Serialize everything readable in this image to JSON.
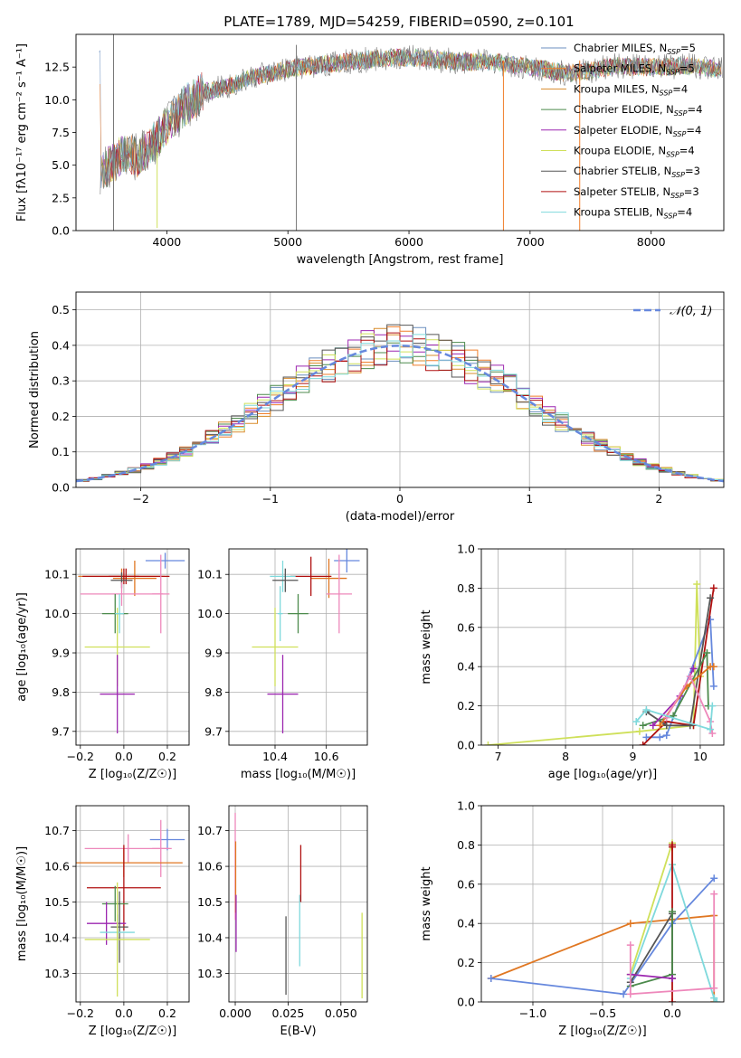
{
  "figure": {
    "title": "PLATE=1789, MJD=54259, FIBERID=0590, z=0.101",
    "colors": {
      "chabrier_miles": "#6b8fbf",
      "salpeter_miles": "#f07e2a",
      "kroupa_miles": "#d98c2b",
      "chabrier_elodie": "#4c8a4c",
      "salpeter_elodie": "#9c27b0",
      "kroupa_elodie": "#cfe05a",
      "chabrier_stelib": "#555555",
      "salpeter_stelib": "#b01010",
      "kroupa_stelib": "#7fd9dc",
      "blue": "#6688dd",
      "pink": "#ee88bb",
      "orange": "#e07722",
      "gray": "#777777"
    }
  },
  "chart_data": [
    {
      "id": "spectrum",
      "type": "line",
      "xlabel": "wavelength [Angstrom, rest frame]",
      "ylabel": "Flux [fλ10⁻¹⁷ erg cm⁻² s⁻¹ A⁻¹]",
      "xlim": [
        3250,
        8600
      ],
      "ylim": [
        0,
        15.0
      ],
      "xticks": [
        "4000",
        "5000",
        "6000",
        "7000",
        "8000"
      ],
      "yticks": [
        "0.0",
        "2.5",
        "5.0",
        "7.5",
        "10.0",
        "12.5"
      ],
      "xtick_values": [
        4000,
        5000,
        6000,
        7000,
        8000
      ],
      "ytick_values": [
        0,
        2.5,
        5.0,
        7.5,
        10.0,
        12.5
      ],
      "legend": [
        {
          "label": "Chabrier MILES, N",
          "n": "5",
          "color": "#6b8fbf"
        },
        {
          "label": "Salpeter MILES, N",
          "n": "5",
          "color": "#f07e2a"
        },
        {
          "label": "Kroupa MILES, N",
          "n": "4",
          "color": "#d98c2b"
        },
        {
          "label": "Chabrier ELODIE, N",
          "n": "4",
          "color": "#4c8a4c"
        },
        {
          "label": "Salpeter ELODIE, N",
          "n": "4",
          "color": "#9c27b0"
        },
        {
          "label": "Kroupa ELODIE, N",
          "n": "4",
          "color": "#cfe05a"
        },
        {
          "label": "Chabrier STELIB, N",
          "n": "3",
          "color": "#555555"
        },
        {
          "label": "Salpeter STELIB, N",
          "n": "3",
          "color": "#b01010"
        },
        {
          "label": "Kroupa STELIB, N",
          "n": "4",
          "color": "#7fd9dc"
        }
      ],
      "legend_sub": "SSP",
      "legend_suffix": "=",
      "continuum": {
        "x": [
          3450,
          3550,
          3650,
          3750,
          3850,
          3950,
          4050,
          4150,
          4300,
          4500,
          4700,
          4900,
          5100,
          5300,
          5500,
          5700,
          5900,
          6100,
          6300,
          6500,
          6700,
          6900,
          7100,
          7300,
          7500,
          7700,
          7900,
          8100,
          8300,
          8500
        ],
        "y": [
          4.6,
          5.0,
          6.1,
          5.6,
          6.3,
          7.4,
          8.6,
          9.6,
          10.6,
          11.0,
          11.7,
          12.1,
          12.5,
          12.7,
          12.9,
          13.1,
          13.2,
          13.2,
          13.0,
          12.9,
          12.9,
          12.6,
          12.4,
          12.0,
          12.2,
          12.6,
          12.5,
          12.5,
          12.6,
          12.4
        ]
      },
      "spikes": [
        {
          "x": 3560,
          "y0": 0,
          "y1": 15.0,
          "color": "#777777"
        },
        {
          "x": 5070,
          "y0": 0,
          "y1": 14.2,
          "color": "#777777"
        },
        {
          "x": 6780,
          "y0": 0,
          "y1": 13.0,
          "color": "#f07e2a"
        },
        {
          "x": 7410,
          "y0": 0,
          "y1": 13.0,
          "color": "#f07e2a"
        },
        {
          "x": 3920,
          "y0": 0.2,
          "y1": 6.0,
          "color": "#cfe05a"
        }
      ]
    },
    {
      "id": "residuals",
      "type": "histogram",
      "xlabel": "(data-model)/error",
      "ylabel": "Normed distribution",
      "xlim": [
        -2.5,
        2.5
      ],
      "ylim": [
        0,
        0.55
      ],
      "xticks": [
        "−2",
        "−1",
        "0",
        "1",
        "2"
      ],
      "yticks": [
        "0.0",
        "0.1",
        "0.2",
        "0.3",
        "0.4",
        "0.5"
      ],
      "xtick_values": [
        -2,
        -1,
        0,
        1,
        2
      ],
      "ytick_values": [
        0,
        0.1,
        0.2,
        0.3,
        0.4,
        0.5
      ],
      "legend": "𝒩(0, 1)",
      "bin_width": 0.1
    },
    {
      "id": "age_vs_Z",
      "type": "errorbar",
      "xlabel": "Z [log₁₀(Z/Z☉)]",
      "ylabel": "age  [log₁₀(age/yr)]",
      "xlim": [
        -0.22,
        0.3
      ],
      "ylim": [
        9.665,
        10.165
      ],
      "xticks": [
        "−0.2",
        "0.0",
        "0.2"
      ],
      "xtick_values": [
        -0.2,
        0.0,
        0.2
      ],
      "yticks": [
        "9.7",
        "9.8",
        "9.9",
        "10.0",
        "10.1"
      ],
      "ytick_values": [
        9.7,
        9.8,
        9.9,
        10.0,
        10.1
      ],
      "points": [
        {
          "x": 0.19,
          "y": 10.135,
          "xerr": 0.09,
          "yerr": 0.02,
          "color": "#6688dd"
        },
        {
          "x": 0.05,
          "y": 10.09,
          "xerr": 0.1,
          "yerr": 0.045,
          "color": "#e07722"
        },
        {
          "x": -0.01,
          "y": 10.095,
          "xerr": 0.2,
          "yerr": 0.02,
          "color": "#e07722"
        },
        {
          "x": 0.0,
          "y": 10.095,
          "xerr": 0.07,
          "yerr": 0.02,
          "color": "#b01010"
        },
        {
          "x": 0.01,
          "y": 10.095,
          "xerr": 0.2,
          "yerr": 0.02,
          "color": "#b01010"
        },
        {
          "x": -0.01,
          "y": 10.085,
          "xerr": 0.05,
          "yerr": 0.02,
          "color": "#555555"
        },
        {
          "x": 0.17,
          "y": 10.05,
          "xerr": 0.04,
          "yerr": 0.1,
          "color": "#ee88bb"
        },
        {
          "x": -0.01,
          "y": 10.05,
          "xerr": 0.19,
          "yerr": 0.03,
          "color": "#ee88bb"
        },
        {
          "x": -0.04,
          "y": 10.0,
          "xerr": 0.06,
          "yerr": 0.05,
          "color": "#4c8a4c"
        },
        {
          "x": -0.03,
          "y": 9.915,
          "xerr": 0.15,
          "yerr": 0.1,
          "color": "#cfe05a"
        },
        {
          "x": -0.03,
          "y": 9.795,
          "xerr": 0.08,
          "yerr": 0.1,
          "color": "#9c27b0"
        },
        {
          "x": -0.02,
          "y": 10.0,
          "xerr": 0.02,
          "yerr": 0.05,
          "color": "#7fd9dc"
        }
      ]
    },
    {
      "id": "age_vs_mass",
      "type": "errorbar",
      "xlabel": "mass [log₁₀(M/M☉)]",
      "ylabel": "",
      "xlim": [
        10.22,
        10.76
      ],
      "ylim": [
        9.665,
        10.165
      ],
      "xticks": [
        "10.4",
        "10.6"
      ],
      "xtick_values": [
        10.4,
        10.6
      ],
      "yticks": [
        "9.7",
        "9.8",
        "9.9",
        "10.0",
        "10.1"
      ],
      "ytick_values": [
        9.7,
        9.8,
        9.9,
        10.0,
        10.1
      ],
      "points": [
        {
          "x": 10.68,
          "y": 10.135,
          "xerr": 0.05,
          "yerr": 0.03,
          "color": "#6688dd"
        },
        {
          "x": 10.61,
          "y": 10.09,
          "xerr": 0.07,
          "yerr": 0.05,
          "color": "#e07722"
        },
        {
          "x": 10.54,
          "y": 10.095,
          "xerr": 0.08,
          "yerr": 0.05,
          "color": "#b01010"
        },
        {
          "x": 10.43,
          "y": 10.095,
          "xerr": 0.05,
          "yerr": 0.04,
          "color": "#7fd9dc"
        },
        {
          "x": 10.44,
          "y": 10.085,
          "xerr": 0.05,
          "yerr": 0.03,
          "color": "#555555"
        },
        {
          "x": 10.65,
          "y": 10.05,
          "xerr": 0.05,
          "yerr": 0.1,
          "color": "#ee88bb"
        },
        {
          "x": 10.49,
          "y": 10.0,
          "xerr": 0.04,
          "yerr": 0.05,
          "color": "#4c8a4c"
        },
        {
          "x": 10.4,
          "y": 9.915,
          "xerr": 0.09,
          "yerr": 0.1,
          "color": "#cfe05a"
        },
        {
          "x": 10.43,
          "y": 9.795,
          "xerr": 0.06,
          "yerr": 0.1,
          "color": "#9c27b0"
        },
        {
          "x": 10.42,
          "y": 10.0,
          "xerr": 0.01,
          "yerr": 0.07,
          "color": "#7fd9dc"
        }
      ]
    },
    {
      "id": "weight_vs_age",
      "type": "line",
      "xlabel": "age  [log₁₀(age/yr)]",
      "ylabel": "mass weight",
      "xlim": [
        6.75,
        10.35
      ],
      "ylim": [
        0,
        1.0
      ],
      "xticks": [
        "7",
        "8",
        "9",
        "10"
      ],
      "xtick_values": [
        7,
        8,
        9,
        10
      ],
      "yticks": [
        "0.0",
        "0.2",
        "0.4",
        "0.6",
        "0.8",
        "1.0"
      ],
      "ytick_values": [
        0,
        0.2,
        0.4,
        0.6,
        0.8,
        1.0
      ],
      "series": [
        {
          "color": "#cfe05a",
          "x": [
            6.85,
            9.1,
            9.9,
            9.95,
            10.0
          ],
          "y": [
            0.0,
            0.07,
            0.1,
            0.82,
            0.35
          ]
        },
        {
          "color": "#6688dd",
          "x": [
            9.2,
            9.4,
            9.5,
            10.15,
            10.2
          ],
          "y": [
            0.04,
            0.04,
            0.05,
            0.64,
            0.3
          ]
        },
        {
          "color": "#b01010",
          "x": [
            9.15,
            9.5,
            9.9,
            10.2
          ],
          "y": [
            0.0,
            0.12,
            0.1,
            0.8
          ]
        },
        {
          "color": "#555555",
          "x": [
            9.2,
            9.5,
            9.85,
            10.15
          ],
          "y": [
            0.17,
            0.1,
            0.1,
            0.75
          ]
        },
        {
          "color": "#4c8a4c",
          "x": [
            9.15,
            9.6,
            10.1,
            10.12
          ],
          "y": [
            0.1,
            0.15,
            0.47,
            0.2
          ]
        },
        {
          "color": "#9c27b0",
          "x": [
            9.3,
            9.7,
            9.9
          ],
          "y": [
            0.1,
            0.25,
            0.39
          ]
        },
        {
          "color": "#e07722",
          "x": [
            9.4,
            9.8,
            10.15,
            10.2
          ],
          "y": [
            0.1,
            0.3,
            0.4,
            0.4
          ]
        },
        {
          "color": "#ee88bb",
          "x": [
            9.5,
            9.85,
            10.15,
            10.18
          ],
          "y": [
            0.14,
            0.35,
            0.12,
            0.06
          ]
        },
        {
          "color": "#7fd9dc",
          "x": [
            9.05,
            9.2,
            10.15,
            10.18
          ],
          "y": [
            0.12,
            0.18,
            0.08,
            0.2
          ]
        }
      ]
    },
    {
      "id": "mass_vs_Z",
      "type": "errorbar",
      "xlabel": "Z [log₁₀(Z/Z☉)]",
      "ylabel": "mass [log₁₀(M/M☉)]",
      "xlim": [
        -0.22,
        0.3
      ],
      "ylim": [
        10.22,
        10.77
      ],
      "xticks": [
        "−0.2",
        "0.0",
        "0.2"
      ],
      "xtick_values": [
        -0.2,
        0.0,
        0.2
      ],
      "yticks": [
        "10.3",
        "10.4",
        "10.5",
        "10.6",
        "10.7"
      ],
      "ytick_values": [
        10.3,
        10.4,
        10.5,
        10.6,
        10.7
      ],
      "points": [
        {
          "x": 0.2,
          "y": 10.675,
          "xerr": 0.08,
          "yerr": 0.03,
          "color": "#6688dd"
        },
        {
          "x": 0.17,
          "y": 10.65,
          "xerr": 0.04,
          "yerr": 0.08,
          "color": "#ee88bb"
        },
        {
          "x": 0.02,
          "y": 10.65,
          "xerr": 0.2,
          "yerr": 0.04,
          "color": "#ee88bb"
        },
        {
          "x": 0.0,
          "y": 10.61,
          "xerr": 0.27,
          "yerr": 0.04,
          "color": "#e07722"
        },
        {
          "x": 0.0,
          "y": 10.54,
          "xerr": 0.17,
          "yerr": 0.12,
          "color": "#b01010"
        },
        {
          "x": -0.04,
          "y": 10.495,
          "xerr": 0.06,
          "yerr": 0.05,
          "color": "#4c8a4c"
        },
        {
          "x": -0.08,
          "y": 10.44,
          "xerr": 0.09,
          "yerr": 0.06,
          "color": "#9c27b0"
        },
        {
          "x": -0.02,
          "y": 10.43,
          "xerr": 0.04,
          "yerr": 0.1,
          "color": "#555555"
        },
        {
          "x": -0.03,
          "y": 10.415,
          "xerr": 0.08,
          "yerr": 0.05,
          "color": "#7fd9dc"
        },
        {
          "x": -0.03,
          "y": 10.395,
          "xerr": 0.15,
          "yerr": 0.16,
          "color": "#cfe05a"
        }
      ]
    },
    {
      "id": "mass_vs_ebv",
      "type": "errorbar",
      "xlabel": "E(B-V)",
      "ylabel": "",
      "xlim": [
        -0.003,
        0.0625
      ],
      "ylim": [
        10.22,
        10.77
      ],
      "xticks": [
        "0.000",
        "0.025",
        "0.050"
      ],
      "xtick_values": [
        0,
        0.025,
        0.05
      ],
      "yticks": [
        "10.3",
        "10.4",
        "10.5",
        "10.6",
        "10.7"
      ],
      "ytick_values": [
        10.3,
        10.4,
        10.5,
        10.6,
        10.7
      ],
      "points": [
        {
          "x": 0.0,
          "y": 10.6,
          "xerr": 0,
          "yerr": 0.15,
          "color": "#ee88bb"
        },
        {
          "x": 0.0002,
          "y": 10.57,
          "xerr": 0,
          "yerr": 0.1,
          "color": "#e07722"
        },
        {
          "x": 0.0004,
          "y": 10.44,
          "xerr": 0,
          "yerr": 0.08,
          "color": "#9c27b0"
        },
        {
          "x": 0.024,
          "y": 10.35,
          "xerr": 0,
          "yerr": 0.11,
          "color": "#555555"
        },
        {
          "x": 0.0305,
          "y": 10.42,
          "xerr": 0,
          "yerr": 0.1,
          "color": "#7fd9dc"
        },
        {
          "x": 0.031,
          "y": 10.58,
          "xerr": 0,
          "yerr": 0.08,
          "color": "#b01010"
        },
        {
          "x": 0.06,
          "y": 10.35,
          "xerr": 0,
          "yerr": 0.12,
          "color": "#cfe05a"
        }
      ]
    },
    {
      "id": "weight_vs_Z",
      "type": "line",
      "xlabel": "Z [log₁₀(Z/Z☉)]",
      "ylabel": "mass weight",
      "xlim": [
        -1.37,
        0.37
      ],
      "ylim": [
        0,
        1.0
      ],
      "xticks": [
        "−1.0",
        "−0.5",
        "0.0"
      ],
      "xtick_values": [
        -1.0,
        -0.5,
        0.0
      ],
      "yticks": [
        "0.0",
        "0.2",
        "0.4",
        "0.6",
        "0.8",
        "1.0"
      ],
      "ytick_values": [
        0,
        0.2,
        0.4,
        0.6,
        0.8,
        1.0
      ],
      "series": [
        {
          "color": "#e07722",
          "x": [
            -1.3,
            -0.3,
            0.0,
            0.3,
            0.3
          ],
          "y": [
            0.12,
            0.4,
            0.42,
            0.44,
            0.0
          ]
        },
        {
          "color": "#6688dd",
          "x": [
            -1.3,
            -0.35,
            0.0,
            0.3
          ],
          "y": [
            0.12,
            0.04,
            0.4,
            0.63
          ]
        },
        {
          "color": "#cfe05a",
          "x": [
            -0.3,
            0.0,
            0.0
          ],
          "y": [
            0.14,
            0.81,
            0.7
          ]
        },
        {
          "color": "#7fd9dc",
          "x": [
            -0.3,
            0.0,
            0.3,
            0.32
          ],
          "y": [
            0.12,
            0.7,
            0.02,
            0.0
          ]
        },
        {
          "color": "#b01010",
          "x": [
            0.0,
            0.0,
            0.0
          ],
          "y": [
            0.0,
            0.8,
            0.79
          ]
        },
        {
          "color": "#555555",
          "x": [
            -0.3,
            0.0,
            0.0
          ],
          "y": [
            0.1,
            0.45,
            0.12
          ]
        },
        {
          "color": "#4c8a4c",
          "x": [
            -0.3,
            0.0,
            0.0
          ],
          "y": [
            0.08,
            0.14,
            0.46
          ]
        },
        {
          "color": "#9c27b0",
          "x": [
            -0.3,
            0.0
          ],
          "y": [
            0.14,
            0.12
          ]
        },
        {
          "color": "#ee88bb",
          "x": [
            -0.3,
            -0.3,
            0.3,
            0.3
          ],
          "y": [
            0.29,
            0.04,
            0.07,
            0.55
          ]
        }
      ]
    }
  ]
}
